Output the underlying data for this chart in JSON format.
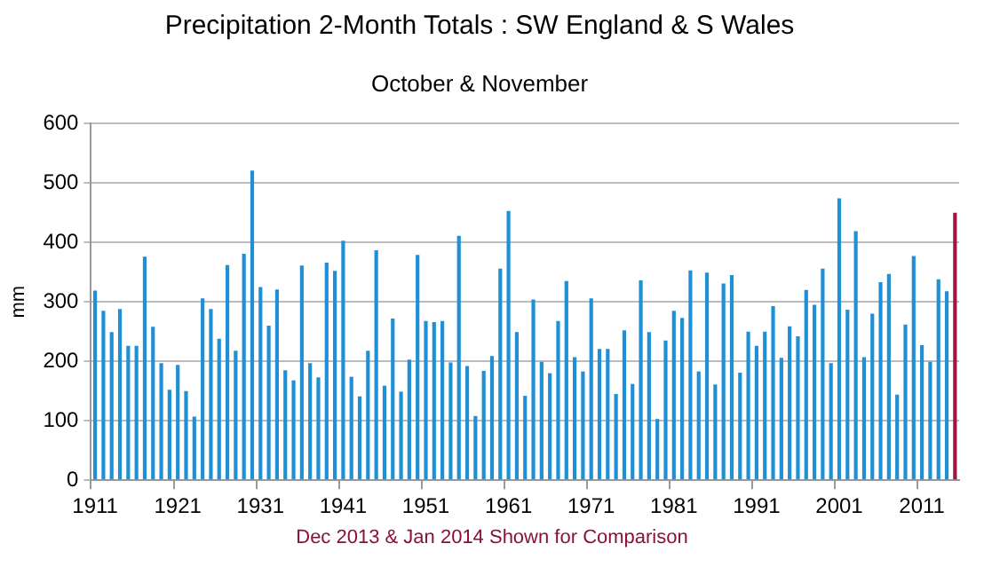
{
  "chart_data": {
    "type": "bar",
    "title": "Precipitation 2-Month Totals : SW England & S Wales",
    "subtitle": "October & November",
    "ylabel": "mm",
    "annotations": [
      "Dec 2013 & Jan 2014 Shown for Comparison"
    ],
    "categories": [
      "1911",
      null,
      null,
      null,
      null,
      null,
      null,
      null,
      null,
      null,
      "1921",
      null,
      null,
      null,
      null,
      null,
      null,
      null,
      null,
      null,
      "1931",
      null,
      null,
      null,
      null,
      null,
      null,
      null,
      null,
      null,
      "1941",
      null,
      null,
      null,
      null,
      null,
      null,
      null,
      null,
      null,
      "1951",
      null,
      null,
      null,
      null,
      null,
      null,
      null,
      null,
      null,
      "1961",
      null,
      null,
      null,
      null,
      null,
      null,
      null,
      null,
      null,
      "1971",
      null,
      null,
      null,
      null,
      null,
      null,
      null,
      null,
      null,
      "1981",
      null,
      null,
      null,
      null,
      null,
      null,
      null,
      null,
      null,
      "1991",
      null,
      null,
      null,
      null,
      null,
      null,
      null,
      null,
      null,
      "2001",
      null,
      null,
      null,
      null,
      null,
      null,
      null,
      null,
      null,
      "2011",
      null,
      null,
      null,
      null
    ],
    "series": [
      {
        "color": "#1f8fd6",
        "values": [
          319,
          285,
          249,
          288,
          226,
          226,
          376,
          258,
          197,
          152,
          194,
          150,
          107,
          306,
          288,
          238,
          362,
          218,
          381,
          521,
          325,
          260,
          321,
          185,
          168,
          361,
          197,
          173,
          366,
          352,
          403,
          174,
          141,
          218,
          387,
          159,
          272,
          149,
          203,
          379,
          268,
          266,
          268,
          198,
          411,
          192,
          108,
          184,
          209,
          356,
          453,
          249,
          142,
          304,
          199,
          180,
          268,
          335,
          207,
          183,
          306,
          221,
          221,
          145,
          252,
          162,
          336,
          249,
          103,
          235,
          285,
          273,
          353,
          183,
          349,
          161,
          331,
          345,
          181,
          250,
          226,
          250,
          293,
          206,
          259,
          242,
          320,
          295,
          356,
          197,
          474,
          287,
          419,
          207,
          280,
          333,
          347,
          144,
          262,
          377,
          227,
          199,
          338,
          318,
          null
        ]
      },
      {
        "color": "#a0153e",
        "values": [
          null,
          null,
          null,
          null,
          null,
          null,
          null,
          null,
          null,
          null,
          null,
          null,
          null,
          null,
          null,
          null,
          null,
          null,
          null,
          null,
          null,
          null,
          null,
          null,
          null,
          null,
          null,
          null,
          null,
          null,
          null,
          null,
          null,
          null,
          null,
          null,
          null,
          null,
          null,
          null,
          null,
          null,
          null,
          null,
          null,
          null,
          null,
          null,
          null,
          null,
          null,
          null,
          null,
          null,
          null,
          null,
          null,
          null,
          null,
          null,
          null,
          null,
          null,
          null,
          null,
          null,
          null,
          null,
          null,
          null,
          null,
          null,
          null,
          null,
          null,
          null,
          null,
          null,
          null,
          null,
          null,
          null,
          null,
          null,
          null,
          null,
          null,
          null,
          null,
          null,
          null,
          null,
          null,
          null,
          null,
          null,
          null,
          null,
          null,
          null,
          null,
          null,
          null,
          null,
          450
        ]
      }
    ],
    "ylim": [
      0,
      600
    ],
    "yticks": [
      0,
      100,
      200,
      300,
      400,
      500,
      600
    ],
    "grid": "y",
    "legend": false
  }
}
